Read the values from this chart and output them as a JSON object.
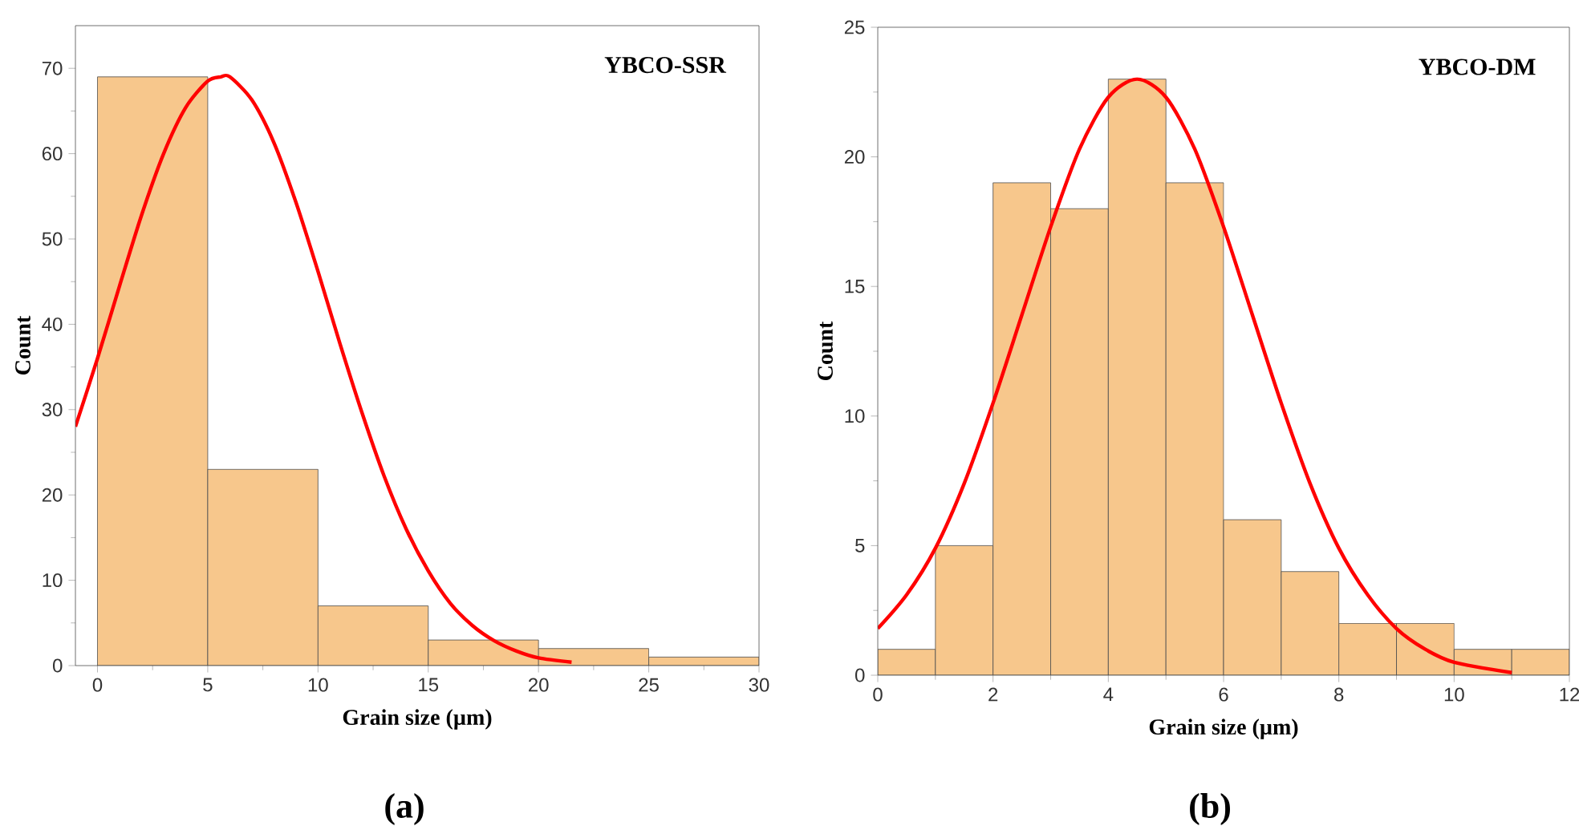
{
  "chart_data": [
    {
      "type": "histogram",
      "title": "YBCO-SSR",
      "xlabel": "Grain size (µm)",
      "ylabel": "Count",
      "annotations": [
        "(a)"
      ],
      "bins": [
        0,
        5,
        10,
        15,
        20,
        25,
        30
      ],
      "values": [
        69,
        23,
        7,
        3,
        2,
        1
      ],
      "color": "#f7c78c",
      "series": [
        {
          "type": "line",
          "color": "#ff0000",
          "x": [
            -1,
            0,
            1,
            2,
            3,
            4,
            5,
            5.6,
            6,
            7,
            8,
            9,
            10,
            11,
            12,
            13,
            14,
            15,
            16,
            17,
            18,
            19,
            20,
            21.5
          ],
          "values": [
            28,
            36,
            44.5,
            52.8,
            60,
            65.4,
            68.5,
            69,
            69,
            66.3,
            61.3,
            54.3,
            46.2,
            37.7,
            29.6,
            22.2,
            16,
            11.1,
            7.3,
            4.7,
            2.9,
            1.7,
            0.9,
            0.4
          ]
        }
      ],
      "xlim": [
        -1,
        30
      ],
      "ylim": [
        0,
        75
      ],
      "xticks": [
        0,
        5,
        10,
        15,
        20,
        25,
        30
      ],
      "yticks": [
        0,
        10,
        20,
        30,
        40,
        50,
        60,
        70
      ]
    },
    {
      "type": "histogram",
      "title": "YBCO-DM",
      "xlabel": "Grain size (µm)",
      "ylabel": "Count",
      "annotations": [
        "(b)"
      ],
      "bins": [
        0,
        1,
        2,
        3,
        4,
        5,
        6,
        7,
        8,
        9,
        10,
        11,
        12
      ],
      "values": [
        1,
        5,
        19,
        18,
        23,
        19,
        6,
        4,
        2,
        2,
        1,
        1
      ],
      "color": "#f7c78c",
      "series": [
        {
          "type": "line",
          "color": "#ff0000",
          "x": [
            0,
            0.5,
            1,
            1.5,
            2,
            2.5,
            3,
            3.5,
            4,
            4.5,
            5,
            5.5,
            6,
            6.5,
            7,
            7.5,
            8,
            8.5,
            9,
            9.5,
            10,
            11
          ],
          "values": [
            1.8,
            3.1,
            4.9,
            7.4,
            10.5,
            13.9,
            17.3,
            20.3,
            22.3,
            23,
            22.3,
            20.3,
            17.3,
            13.9,
            10.5,
            7.4,
            4.9,
            3.1,
            1.8,
            1.0,
            0.5,
            0.1
          ]
        }
      ],
      "xlim": [
        0,
        12
      ],
      "ylim": [
        0,
        25
      ],
      "xticks": [
        0,
        2,
        4,
        6,
        8,
        10,
        12
      ],
      "yticks": [
        0,
        5,
        10,
        15,
        20,
        25
      ]
    }
  ]
}
